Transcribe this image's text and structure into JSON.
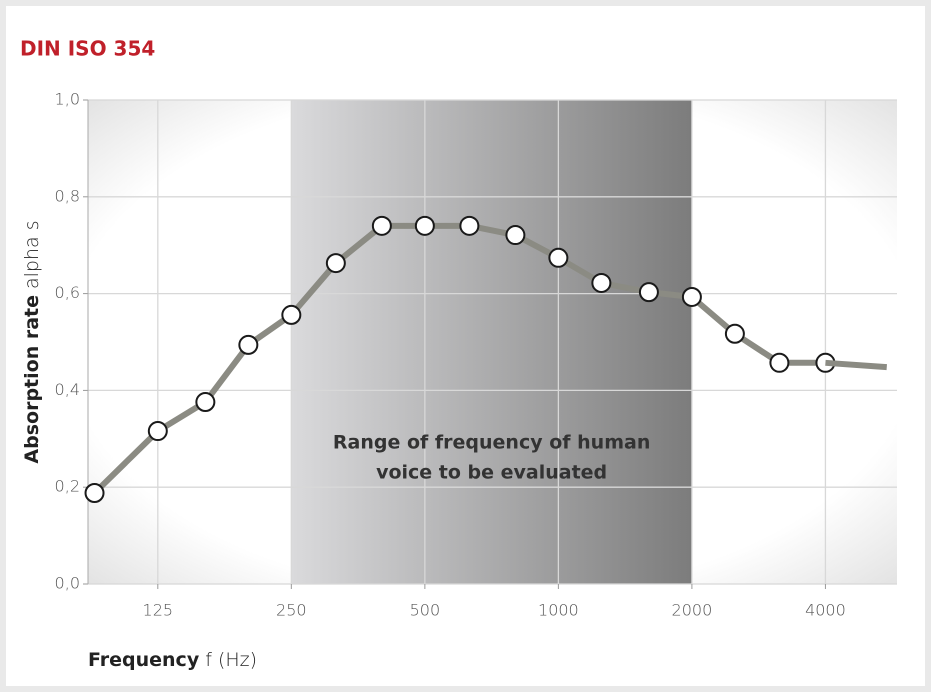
{
  "chart_data": {
    "type": "line",
    "title": "DIN ISO 354",
    "xlabel": [
      "Frequency",
      "f (Hz)"
    ],
    "ylabel": [
      "Absorption rate",
      "alpha s"
    ],
    "log_x": true,
    "grid": true,
    "xlim": [
      87,
      5800
    ],
    "ylim": [
      0,
      1
    ],
    "xticks": [
      125,
      250,
      500,
      1000,
      2000,
      4000
    ],
    "yticks": [
      {
        "value": 0,
        "label": "0,0"
      },
      {
        "value": 0.2,
        "label": "0,2"
      },
      {
        "value": 0.4,
        "label": "0,4"
      },
      {
        "value": 0.6,
        "label": "0,6"
      },
      {
        "value": 0.8,
        "label": "0,8"
      },
      {
        "value": 1,
        "label": "1,0"
      }
    ],
    "highlight": {
      "xmin": 250,
      "xmax": 2000,
      "text": [
        "Range of frequency of human",
        "voice to be evaluated"
      ]
    },
    "series": [
      {
        "color": "#8b8b83",
        "markers": true,
        "x": [
          90,
          125,
          160,
          200,
          250,
          315,
          400,
          500,
          630,
          800,
          1000,
          1250,
          1600,
          2000,
          2500,
          3150,
          4000
        ],
        "values": [
          0.188,
          0.316,
          0.376,
          0.494,
          0.556,
          0.663,
          0.74,
          0.74,
          0.74,
          0.721,
          0.674,
          0.622,
          0.603,
          0.593,
          0.517,
          0.457,
          0.457
        ]
      },
      {
        "color": "#8b8b83",
        "markers": false,
        "x": [
          4000,
          5500
        ],
        "values": [
          0.457,
          0.448
        ]
      }
    ]
  }
}
